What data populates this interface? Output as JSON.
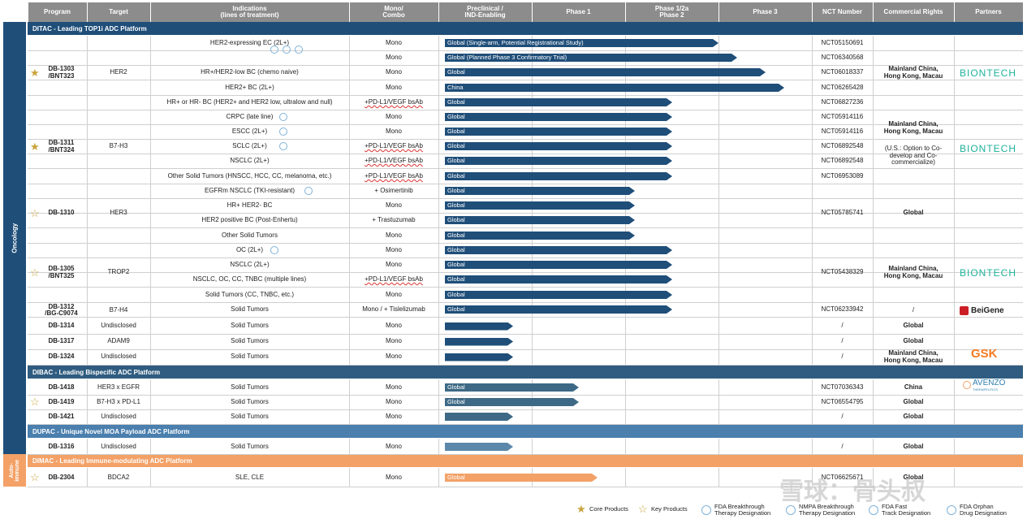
{
  "header": {
    "program": "Program",
    "target": "Target",
    "indications": "Indications\n(lines of treatment)",
    "mono": "Mono/\nCombo",
    "preclinical": "Preclinical /\nIND-Enabling",
    "phase1": "Phase 1",
    "phase12": "Phase 1/2a\nPhase 2",
    "phase3": "Phase 3",
    "nct": "NCT Number",
    "rights": "Commercial Rights",
    "partners": "Partners"
  },
  "side": {
    "oncology": "Oncology",
    "autoimmune": "Auto-\nimmune"
  },
  "platforms": {
    "ditac": "DITAC - Leading TOP1i ADC Platform",
    "dibac": "DIBAC - Leading Bispecific ADC Platform",
    "dupac": "DUPAC - Unique Novel MOA Payload ADC Platform",
    "dimac": "DIMAC - Leading Immune-modulating ADC Platform"
  },
  "colors": {
    "header": "#8c8c8c",
    "ditac": "#1f4e79",
    "dibac": "#2f5c80",
    "dupac": "#4a7fae",
    "dimac": "#f3a167",
    "bar_ditac": "#1f4e79",
    "bar_dibac": "#3d6986",
    "bar_dupac": "#5b87aa",
    "bar_dimac": "#f3a167",
    "biontech": "#1fb29a",
    "beigene": "#cc1f25",
    "gsk": "#f47a20",
    "star_core": "#c9a33b",
    "star_key": "#c9a33b"
  },
  "programs": {
    "p1303": "DB-1303\n/BNT323",
    "p1311": "DB-1311\n/BNT324",
    "p1310": "DB-1310",
    "p1305": "DB-1305\n/BNT325",
    "p1312": "DB-1312\n/BG-C9074",
    "p1314": "DB-1314",
    "p1317": "DB-1317",
    "p1324": "DB-1324",
    "p1418": "DB-1418",
    "p1419": "DB-1419",
    "p1421": "DB-1421",
    "p1316": "DB-1316",
    "p2304": "DB-2304"
  },
  "targets": {
    "t1303": "HER2",
    "t1311": "B7-H3",
    "t1310": "HER3",
    "t1305": "TROP2",
    "t1312": "B7-H4",
    "t1314": "Undisclosed",
    "t1317": "ADAM9",
    "t1324": "Undisclosed",
    "t1418": "HER3 x EGFR",
    "t1419": "B7-H3 x PD-L1",
    "t1421": "Undisclosed",
    "t1316": "Undisclosed",
    "t2304": "BDCA2"
  },
  "rows": [
    {
      "ind": "HER2-expressing EC (2L+)",
      "mono": "Mono",
      "bar": "Global (Single-arm, Potential Registrational Study)",
      "nct": "NCT05150691",
      "progress": 3.0
    },
    {
      "ind": "",
      "mono": "Mono",
      "bar": "Global (Planned Phase 3 Confirmatory Trial)",
      "nct": "NCT06340568",
      "progress": 3.2
    },
    {
      "ind": "HR+/HER2-low BC (chemo naive)",
      "mono": "Mono",
      "bar": "Global",
      "nct": "NCT06018337",
      "progress": 3.5
    },
    {
      "ind": "HER2+ BC (2L+)",
      "mono": "Mono",
      "bar": "China",
      "nct": "NCT06265428",
      "progress": 3.7
    },
    {
      "ind": "HR+ or HR- BC (HER2+ and HER2 low, ultralow and null)",
      "mono": "+PD-L1/VEGF bsAb",
      "bar": "Global",
      "nct": "NCT06827236",
      "progress": 2.5
    },
    {
      "ind": "CRPC (late line)",
      "mono": "Mono",
      "bar": "Global",
      "nct": "NCT05914116",
      "progress": 2.5
    },
    {
      "ind": "ESCC (2L+)",
      "mono": "Mono",
      "bar": "Global",
      "nct": "NCT05914116",
      "progress": 2.5
    },
    {
      "ind": "SCLC (2L+)",
      "mono": "+PD-L1/VEGF bsAb",
      "bar": "Global",
      "nct": "NCT06892548",
      "progress": 2.5
    },
    {
      "ind": "NSCLC (2L+)",
      "mono": "+PD-L1/VEGF bsAb",
      "bar": "Global",
      "nct": "NCT06892548",
      "progress": 2.5
    },
    {
      "ind": "Other Solid Tumors (HNSCC, HCC, CC, melanoma, etc.)",
      "mono": "+PD-L1/VEGF bsAb",
      "bar": "Global",
      "nct": "NCT06953089",
      "progress": 2.5
    },
    {
      "ind": "EGFRm NSCLC (TKI-resistant)",
      "mono": "+ Osimertinib",
      "bar": "Global",
      "nct": "",
      "progress": 2.1
    },
    {
      "ind": "HR+ HER2- BC",
      "mono": "Mono",
      "bar": "Global",
      "nct": "",
      "progress": 2.1
    },
    {
      "ind": "HER2 positive BC (Post-Enhertu)",
      "mono": "+ Trastuzumab",
      "bar": "Global",
      "nct": "",
      "progress": 2.1
    },
    {
      "ind": "Other Solid Tumors",
      "mono": "Mono",
      "bar": "Global",
      "nct": "",
      "progress": 2.1
    },
    {
      "ind": "OC (2L+)",
      "mono": "Mono",
      "bar": "Global",
      "nct": "",
      "progress": 2.5
    },
    {
      "ind": "NSCLC (2L+)",
      "mono": "Mono",
      "bar": "Global",
      "nct": "",
      "progress": 2.5
    },
    {
      "ind": "NSCLC, OC, CC, TNBC (multiple lines)",
      "mono": "+PD-L1/VEGF bsAb",
      "bar": "Global",
      "nct": "",
      "progress": 2.5
    },
    {
      "ind": "Solid Tumors (CC, TNBC, etc.)",
      "mono": "Mono",
      "bar": "Global",
      "nct": "",
      "progress": 2.5
    },
    {
      "ind": "Solid Tumors",
      "mono": "Mono / + Tislelizumab",
      "bar": "Global",
      "nct": "NCT06233942",
      "progress": 2.5
    },
    {
      "ind": "Solid Tumors",
      "mono": "Mono",
      "bar": "",
      "nct": "/",
      "progress": 0.8
    },
    {
      "ind": "Solid Tumors",
      "mono": "Mono",
      "bar": "",
      "nct": "/",
      "progress": 0.8
    },
    {
      "ind": "Solid Tumors",
      "mono": "Mono",
      "bar": "",
      "nct": "/",
      "progress": 0.8
    },
    {
      "ind": "Solid Tumors",
      "mono": "Mono",
      "bar": "Global",
      "nct": "NCT07036343",
      "progress": 1.5
    },
    {
      "ind": "Solid Tumors",
      "mono": "Mono",
      "bar": "Global",
      "nct": "NCT06554795",
      "progress": 1.5
    },
    {
      "ind": "Solid Tumors",
      "mono": "Mono",
      "bar": "",
      "nct": "/",
      "progress": 0.8
    },
    {
      "ind": "Solid Tumors",
      "mono": "Mono",
      "bar": "",
      "nct": "/",
      "progress": 0.8
    },
    {
      "ind": "SLE, CLE",
      "mono": "Mono",
      "bar": "Global",
      "nct": "NCT06625671",
      "progress": 1.7
    }
  ],
  "nct_merged": {
    "n1310": "NCT05785741",
    "n1305": "NCT05438329"
  },
  "rights": {
    "r1303": "Mainland China,\nHong Kong, Macau",
    "r1311a": "Mainland China,\nHong Kong, Macau",
    "r1311b": "(U.S.: Option to Co-\ndevelop and Co-\ncommercialize)",
    "r1310": "Global",
    "r1305": "Mainland China,\nHong Kong, Macau",
    "r1312": "/",
    "r1314": "Global",
    "r1317": "Global",
    "r1324": "Mainland China,\nHong Kong, Macau",
    "r1418": "China",
    "r1419": "Global",
    "r1421": "Global",
    "r1316": "Global",
    "r2304": "Global"
  },
  "partners": {
    "biontech": "BIONTECH",
    "beigene": "BeiGene",
    "gsk": "GSK",
    "avenzo": "AVENZO",
    "avenzo_sub": "THERAPEUTICS"
  },
  "legend": {
    "core": "Core Products",
    "key": "Key Products",
    "btd": "FDA Breakthrough\nTherapy Designation",
    "nmpa": "NMPA Breakthrough\nTherapy Designation",
    "fast": "FDA Fast\nTrack Designation",
    "orphan": "FDA Orphan\nDrug Designation"
  },
  "watermark": "雪球：骨头叔"
}
